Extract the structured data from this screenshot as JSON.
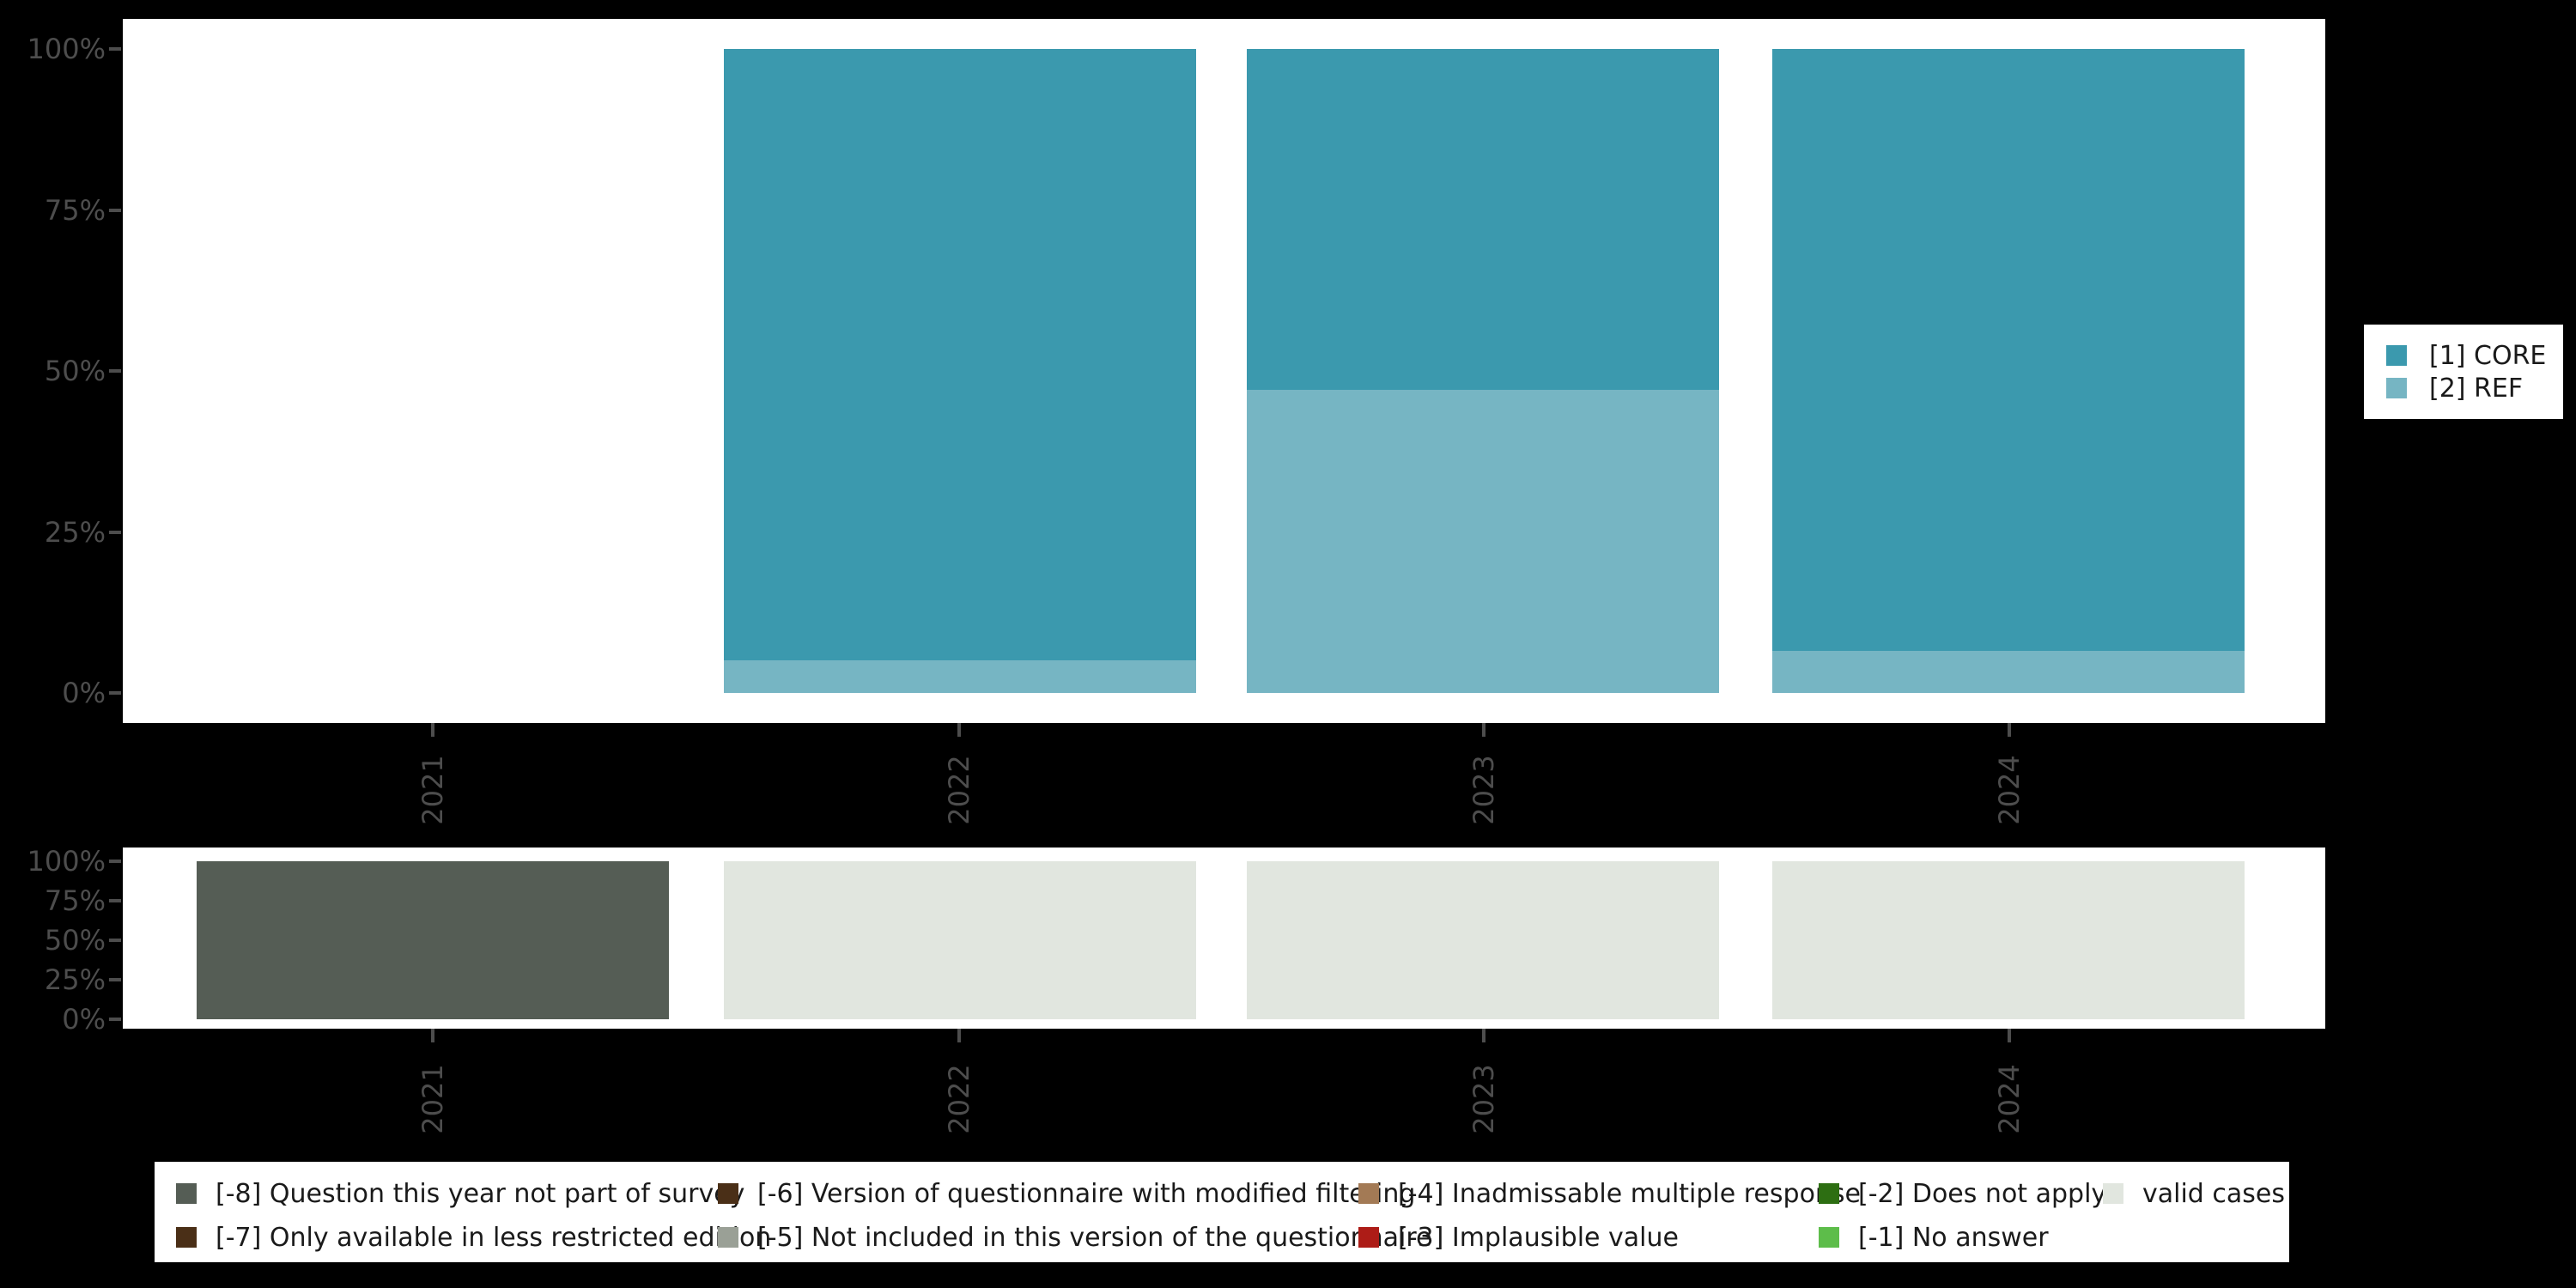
{
  "colors": {
    "core": "#3b99ae",
    "ref": "#76b5c3",
    "missing_8": "#555d55",
    "missing_7": "#4a2f17",
    "missing_6": "#4a2f17",
    "missing_5": "#9aa096",
    "missing_4": "#a37a55",
    "missing_3": "#ad1c17",
    "missing_2": "#2d6e12",
    "missing_1": "#5dbd4a",
    "valid": "#e1e6df",
    "axis_text": "#4d4d4d",
    "legend_text": "#1a1a1a",
    "panel_bg": "#ffffff",
    "page_bg": "#000000"
  },
  "chart_data": [
    {
      "type": "bar",
      "stacked": true,
      "title": "",
      "xlabel": "",
      "ylabel": "",
      "units": "percent",
      "ylim": [
        0,
        100
      ],
      "grid": false,
      "legend_position": "right",
      "categories": [
        "2021",
        "2022",
        "2023",
        "2024"
      ],
      "y_tick_labels": [
        "100%",
        "75%",
        "50%",
        "25%",
        "0%"
      ],
      "series": [
        {
          "name": "[1] CORE",
          "color_key": "core",
          "values": [
            null,
            94.9,
            52.9,
            93.5
          ]
        },
        {
          "name": "[2] REF",
          "color_key": "ref",
          "values": [
            null,
            5.1,
            47.1,
            6.5
          ]
        }
      ]
    },
    {
      "type": "bar",
      "stacked": true,
      "title": "",
      "xlabel": "",
      "ylabel": "",
      "units": "percent",
      "ylim": [
        0,
        100
      ],
      "grid": false,
      "legend_position": "bottom",
      "categories": [
        "2021",
        "2022",
        "2023",
        "2024"
      ],
      "y_tick_labels": [
        "100%",
        "75%",
        "50%",
        "25%",
        "0%"
      ],
      "series": [
        {
          "name": "[-8] Question this year not part of survey",
          "color_key": "missing_8",
          "values": [
            100,
            null,
            null,
            null
          ]
        },
        {
          "name": "valid cases",
          "color_key": "valid",
          "values": [
            null,
            100,
            100,
            100
          ]
        }
      ]
    }
  ],
  "series_legend": {
    "items": [
      {
        "label": "[1] CORE",
        "color_key": "core"
      },
      {
        "label": "[2] REF",
        "color_key": "ref"
      }
    ]
  },
  "missing_legend": {
    "columns": [
      {
        "items": [
          {
            "label": "[-8] Question this year not part of survey",
            "color_key": "missing_8"
          },
          {
            "label": "[-7] Only available in less restricted edition",
            "color_key": "missing_7"
          }
        ]
      },
      {
        "items": [
          {
            "label": "[-6] Version of questionnaire with modified filtering",
            "color_key": "missing_6"
          },
          {
            "label": "[-5] Not included in this version of the questionnaire",
            "color_key": "missing_5"
          }
        ]
      },
      {
        "items": [
          {
            "label": "[-4] Inadmissable multiple response",
            "color_key": "missing_4"
          },
          {
            "label": "[-3] Implausible value",
            "color_key": "missing_3"
          }
        ]
      },
      {
        "items": [
          {
            "label": "[-2] Does not apply",
            "color_key": "missing_2"
          },
          {
            "label": "[-1] No answer",
            "color_key": "missing_1"
          }
        ]
      },
      {
        "items": [
          {
            "label": "valid cases",
            "color_key": "valid"
          }
        ]
      }
    ]
  }
}
